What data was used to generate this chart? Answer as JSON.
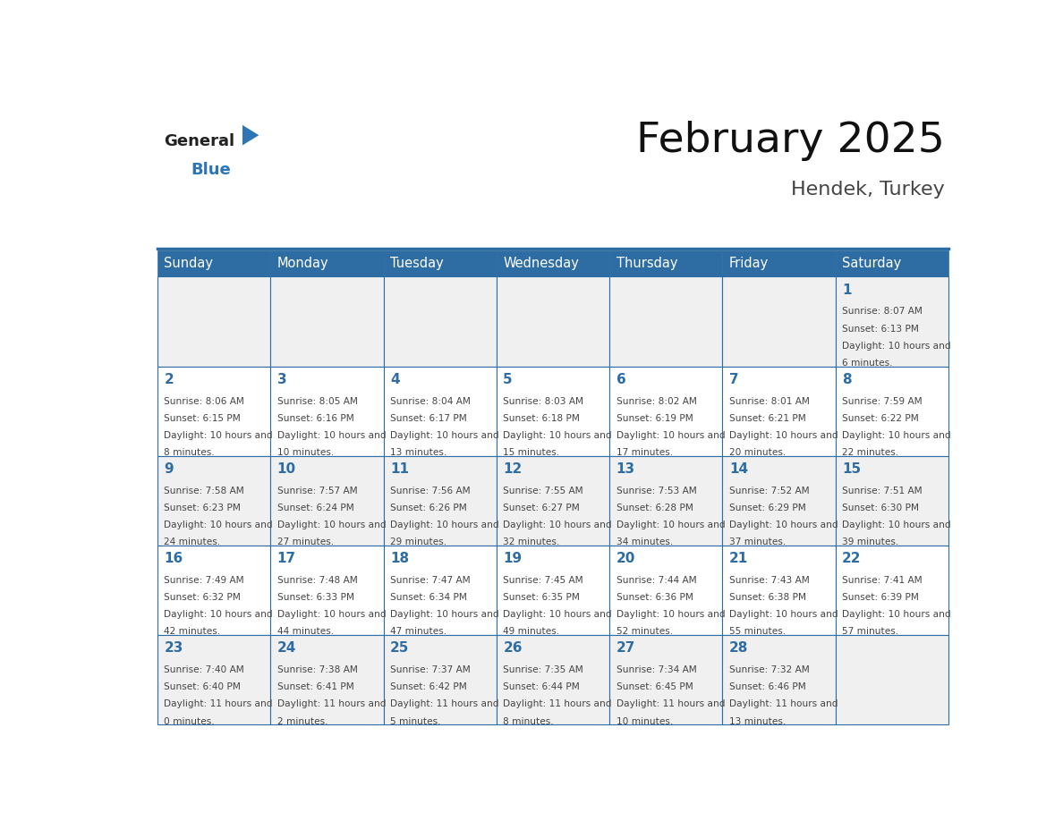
{
  "title": "February 2025",
  "subtitle": "Hendek, Turkey",
  "days_of_week": [
    "Sunday",
    "Monday",
    "Tuesday",
    "Wednesday",
    "Thursday",
    "Friday",
    "Saturday"
  ],
  "header_bg": "#2e6da4",
  "header_fg": "#ffffff",
  "cell_bg_light": "#f0f0f0",
  "cell_bg_white": "#ffffff",
  "border_color": "#2e6da4",
  "day_number_color": "#2e6da4",
  "text_color": "#444444",
  "logo_general_color": "#222222",
  "logo_blue_color": "#2e75b6",
  "calendar_data": [
    [
      null,
      null,
      null,
      null,
      null,
      null,
      {
        "day": 1,
        "sunrise": "8:07 AM",
        "sunset": "6:13 PM",
        "daylight": "10 hours and 6 minutes."
      }
    ],
    [
      {
        "day": 2,
        "sunrise": "8:06 AM",
        "sunset": "6:15 PM",
        "daylight": "10 hours and 8 minutes."
      },
      {
        "day": 3,
        "sunrise": "8:05 AM",
        "sunset": "6:16 PM",
        "daylight": "10 hours and 10 minutes."
      },
      {
        "day": 4,
        "sunrise": "8:04 AM",
        "sunset": "6:17 PM",
        "daylight": "10 hours and 13 minutes."
      },
      {
        "day": 5,
        "sunrise": "8:03 AM",
        "sunset": "6:18 PM",
        "daylight": "10 hours and 15 minutes."
      },
      {
        "day": 6,
        "sunrise": "8:02 AM",
        "sunset": "6:19 PM",
        "daylight": "10 hours and 17 minutes."
      },
      {
        "day": 7,
        "sunrise": "8:01 AM",
        "sunset": "6:21 PM",
        "daylight": "10 hours and 20 minutes."
      },
      {
        "day": 8,
        "sunrise": "7:59 AM",
        "sunset": "6:22 PM",
        "daylight": "10 hours and 22 minutes."
      }
    ],
    [
      {
        "day": 9,
        "sunrise": "7:58 AM",
        "sunset": "6:23 PM",
        "daylight": "10 hours and 24 minutes."
      },
      {
        "day": 10,
        "sunrise": "7:57 AM",
        "sunset": "6:24 PM",
        "daylight": "10 hours and 27 minutes."
      },
      {
        "day": 11,
        "sunrise": "7:56 AM",
        "sunset": "6:26 PM",
        "daylight": "10 hours and 29 minutes."
      },
      {
        "day": 12,
        "sunrise": "7:55 AM",
        "sunset": "6:27 PM",
        "daylight": "10 hours and 32 minutes."
      },
      {
        "day": 13,
        "sunrise": "7:53 AM",
        "sunset": "6:28 PM",
        "daylight": "10 hours and 34 minutes."
      },
      {
        "day": 14,
        "sunrise": "7:52 AM",
        "sunset": "6:29 PM",
        "daylight": "10 hours and 37 minutes."
      },
      {
        "day": 15,
        "sunrise": "7:51 AM",
        "sunset": "6:30 PM",
        "daylight": "10 hours and 39 minutes."
      }
    ],
    [
      {
        "day": 16,
        "sunrise": "7:49 AM",
        "sunset": "6:32 PM",
        "daylight": "10 hours and 42 minutes."
      },
      {
        "day": 17,
        "sunrise": "7:48 AM",
        "sunset": "6:33 PM",
        "daylight": "10 hours and 44 minutes."
      },
      {
        "day": 18,
        "sunrise": "7:47 AM",
        "sunset": "6:34 PM",
        "daylight": "10 hours and 47 minutes."
      },
      {
        "day": 19,
        "sunrise": "7:45 AM",
        "sunset": "6:35 PM",
        "daylight": "10 hours and 49 minutes."
      },
      {
        "day": 20,
        "sunrise": "7:44 AM",
        "sunset": "6:36 PM",
        "daylight": "10 hours and 52 minutes."
      },
      {
        "day": 21,
        "sunrise": "7:43 AM",
        "sunset": "6:38 PM",
        "daylight": "10 hours and 55 minutes."
      },
      {
        "day": 22,
        "sunrise": "7:41 AM",
        "sunset": "6:39 PM",
        "daylight": "10 hours and 57 minutes."
      }
    ],
    [
      {
        "day": 23,
        "sunrise": "7:40 AM",
        "sunset": "6:40 PM",
        "daylight": "11 hours and 0 minutes."
      },
      {
        "day": 24,
        "sunrise": "7:38 AM",
        "sunset": "6:41 PM",
        "daylight": "11 hours and 2 minutes."
      },
      {
        "day": 25,
        "sunrise": "7:37 AM",
        "sunset": "6:42 PM",
        "daylight": "11 hours and 5 minutes."
      },
      {
        "day": 26,
        "sunrise": "7:35 AM",
        "sunset": "6:44 PM",
        "daylight": "11 hours and 8 minutes."
      },
      {
        "day": 27,
        "sunrise": "7:34 AM",
        "sunset": "6:45 PM",
        "daylight": "11 hours and 10 minutes."
      },
      {
        "day": 28,
        "sunrise": "7:32 AM",
        "sunset": "6:46 PM",
        "daylight": "11 hours and 13 minutes."
      },
      null
    ]
  ]
}
